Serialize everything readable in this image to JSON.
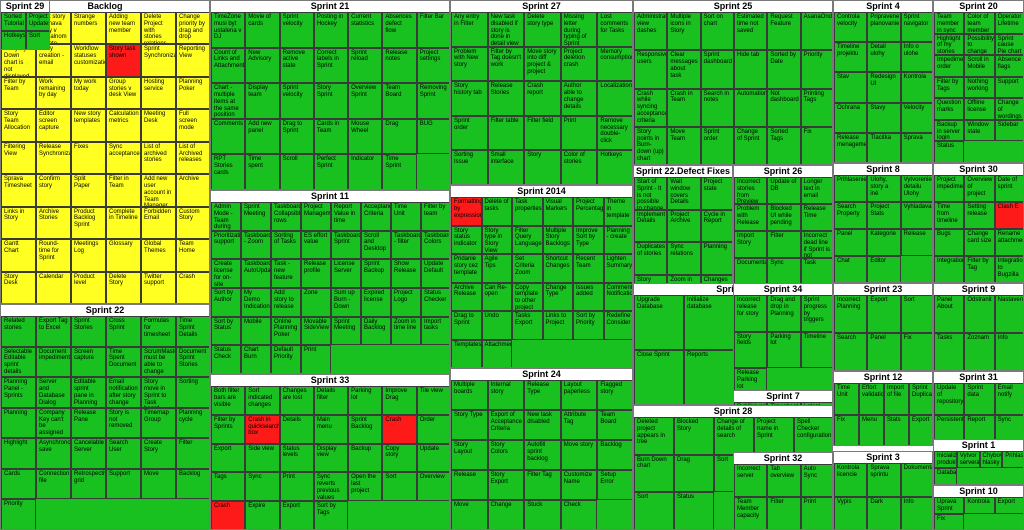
{
  "groups": [
    {
      "title": "Backlog",
      "fill": "yellow",
      "cells": [
        "Import from ESV E.",
        "Split story nechava story v aktualnom sprinte",
        "Strange numbers",
        "Adding new team member",
        "Delete Project with stories relations",
        "Change priority by drag and drop",
        "Story Sym Down chart is not displayed",
        "Story creation - email",
        "Workflow statuses customization",
        "Story task shown",
        "Sprint Synchronization",
        "Reporting View",
        "Filter by Team",
        "Work remaining by day",
        "My work today",
        "Group stories v desk View",
        "Hosting service",
        "Planning Poker",
        "Story Team Allocation",
        "Editor screen capture",
        "New story templates",
        "Calculation metrics",
        "Meeting Desk",
        "Full screen mode",
        "Filtering View",
        "Release Synchronization",
        "Fixes",
        "Sync acceptance",
        "List of archived stories",
        "List of Archived releases",
        "Sprava Timesheet",
        "Confirm story",
        "Split Paper",
        "Filter in Team",
        "Add new user account in Team Manager",
        "Archive",
        "Links in Story",
        "Archive Stories",
        "Product Backlog Sprint",
        "Complete in Timeline",
        "Forbidden Email",
        "Custom Story",
        "Gantt Chart",
        "Round-time for Sprint",
        "Meetings Log",
        "Glossary",
        "Global Themes",
        "Team Home",
        "Story Desk",
        "Calendar",
        "Product level",
        "Delete Story",
        "Twitter support",
        "Crash"
      ]
    },
    {
      "title": "Sprint 21",
      "fill": "green",
      "cells": [
        "TimeZone musi byt ustalena v DJ",
        "Movie of cards",
        "Sprint velocity",
        "Posting in Hockey",
        "Current statistics",
        "Absences defect flow",
        "Filter Bar",
        "Count of Links and Attachments",
        "New Advisory",
        "Remove active state",
        "Correct labels in Sprint",
        "Sprint reload",
        "Release notes",
        "Project settings",
        "Chart - multiple items at the same position",
        "Display team",
        "Sprint velocity",
        "Story Sprint",
        "Overview Sprint",
        "Team Board",
        "Removing Sprint",
        "Comments",
        "Add new panel",
        "Drag to Sprint",
        "Cards in Team",
        "Mouse Wheel",
        "Drag",
        "BUG",
        "RPT Stories cards",
        "Time spent",
        "Scroll",
        "Perfect Sprint",
        "Indicator",
        "Time Sprint"
      ]
    },
    {
      "title": "Sprint 27",
      "fill": "green",
      "cells": [
        "Any entry in Filter",
        "New task disabled if story is done in detail view",
        "Delete story type",
        "Missing letter during typing of Sprint",
        "Lost comments for Tasks",
        "Problem with New story",
        "Filter by Tag doesn't work",
        "Move story into diff project & project",
        "Project deletion crash",
        "Memory consumption",
        "Story history tab",
        "Release Stories",
        "Crash report",
        "Author able to change details",
        "Localization",
        "Sprint order",
        "Filter table",
        "Filter field",
        "Print",
        "Remove necessary double-click",
        "Sorting Issue",
        "Small interface",
        "Story",
        "Color of stories",
        "Hotkeys"
      ]
    },
    {
      "title": "Sprint 25",
      "fill": "green",
      "cells": [
        "Administration view dashes",
        "Multiple icons in Story",
        "Sort on chart",
        "Estimated time not saved",
        "Request Feature",
        "AsanaOnde",
        "Responsive users",
        "Clear messages about task",
        "Sprint dashboard",
        "Hide tab",
        "Sorted by Date",
        "Priority",
        "Crash while syncing acceptance criteria",
        "Crash in Team",
        "Search in notes",
        "Automation",
        "Not dashboard",
        "Printing Tags",
        "Story points in Burn-down (up) chart",
        "Move Team",
        "Sprint order",
        "Change of Sprint",
        "Sorted Tags",
        "Fix"
      ]
    },
    {
      "title": "Sprint 4",
      "fill": "green",
      "cells": [
        "Controla velocity",
        "Pripravene planovanie",
        "Sprint navigator",
        "Timeline projektu",
        "Detail ulohy",
        "Info o ulohe",
        "Stav",
        "Redesign UI",
        "Kontrola",
        "Ochrana",
        "Stavy",
        "Velocity",
        "Release menagement",
        "Tlacitka",
        "Sprava"
      ]
    },
    {
      "title": "Sprint 20",
      "fill": "green",
      "cells": [
        "Team member in sync",
        "Color of team member",
        "Operator Lifetime",
        "Highlight of my stories",
        "Possibility to change the size",
        "Sprint cause Pie chart not",
        "Impediments order",
        "Scroll in Mobile",
        "Absence flags",
        "Filter by Tags",
        "Nothing working",
        "Support",
        "Question marks",
        "Offline license",
        "Change of wordings",
        "Backup in server login",
        "Window state",
        "Sidebar",
        "Status"
      ]
    },
    {
      "title": "Sprint 11",
      "fill": "green",
      "cells": [
        "Admin Mode - Team during the load",
        "Sprint Meeting",
        "Taskboard Collapsible rows",
        "Project Management",
        "Report Value in time",
        "Acceptance Criteria",
        "Time Unit",
        "Filter by team",
        "Prioritization support",
        "Taskboard - Zoom",
        "Sorting of Tasks",
        "ES effort value",
        "Taskboard Sprint",
        "Scroll and Desktop",
        "Taskboard - filter",
        "Taskboard Colors",
        "Create license for on-site users",
        "Taskboard AutoUpdate",
        "Task - new feature",
        "Release profile",
        "License Server",
        "Sprint Backup",
        "Show Release",
        "Update Default",
        "Sort by Author",
        "My Demo Indication",
        "Add story to release",
        "Zone",
        "Sum up Burn - Down",
        "Expired license",
        "Project Logo",
        "Status Checker",
        "Sort by Status",
        "Mobile",
        "Online Planning Poker",
        "Movable SideView",
        "Sprint Meeting",
        "Daily Backlog",
        "Zoom in time line",
        "Import tasks",
        "Status Check",
        "Chart Burn",
        "Default Priority",
        "Print"
      ]
    },
    {
      "title": "Sprint 2014",
      "fill": "green",
      "cells": [
        "Formatting by expression",
        "Delete of tasks",
        "Task properties",
        "Visual Markers",
        "Project Percentage",
        "Theme in template",
        "Story status indicator",
        "Story type in Story View",
        "Filter Query Language",
        "Multiple Story Backlogs",
        "Improve Sort by Type",
        "Planning - create",
        "Pridanie story cez template",
        "Agile Tips",
        "Set Criteria Zoom",
        "Shortcut Changes",
        "Recent Team",
        "Lighten Summary",
        "Archive Release",
        "Can Re-open",
        "Copy template to other project",
        "Change Type",
        "Issues added",
        "Comment Notifications",
        "Drag to Sprint",
        "Undo",
        "Tasks Export",
        "Links to Project",
        "Sort by Priority",
        "Redefine Consider",
        "Templates",
        "Attachments"
      ]
    },
    {
      "title": "Sprint 22.Defect Fixes",
      "fill": "green",
      "cells": [
        "Start of Sprint - It is not possible to change",
        "Wait window covers Details",
        "Project state",
        "Implement Details",
        "Project Archive",
        "Cycle in Report",
        "Duplicates of stories",
        "Sync relations",
        "Planning",
        "Story Archive",
        "Zoom in Report",
        "Changes in Timesheet",
        "Priority in Team",
        "Export",
        "Release Change",
        "Duplicate Ballot",
        "Sprint Issue",
        "Import",
        "Chart"
      ]
    },
    {
      "title": "Sprint 26",
      "fill": "green",
      "cells": [
        "Incorrect stories from Preview",
        "Update of DB",
        "Longer text in email",
        "Problem with Release",
        "Blocked UI while pending",
        "Release Time",
        "Import Story",
        "Filter",
        "Incorrect dead line if Sprint is not",
        "Documentation",
        "Sync",
        "Task"
      ]
    },
    {
      "title": "Sprint 8",
      "fill": "green",
      "cells": [
        "Prihlasenie",
        "Ulohy, story a iné",
        "Vytvorenie detailu Ulohy",
        "Search Property",
        "Project Stats",
        "Vyhladavanie",
        "Panel",
        "Kategorie",
        "Release",
        "Chat",
        "Editor"
      ]
    },
    {
      "title": "Sprint 30",
      "fill": "green",
      "cells": [
        "Project impediments",
        "Overview of project",
        "Date of sprint",
        "Time from timeline",
        "Setting release",
        "Clash E",
        "Bugs",
        "Change card size",
        "Rename attachment",
        "Integration",
        "Filter by Tag",
        "Integration to Bugzilla"
      ]
    },
    {
      "title": "Sprint 22",
      "fill": "green",
      "cells": [
        "Related stories",
        "Export Tag to Excel",
        "Sprint Stories",
        "Cross Sprint",
        "Formulas for timesheet",
        "Time Sprint Details",
        "Selectable Editable sprint details",
        "Document impediments",
        "Screen capture",
        "Time Spent Document",
        "ScrumMaster must be able to change status",
        "Document Sprint Stories",
        "Planning Panel - Sprints",
        "Server and Database Dialog",
        "Editable sprint pane in Planning",
        "Email notification after story change",
        "Story move in Sprint to Task board",
        "Sorting",
        "Planning",
        "Company Key can't be assigned",
        "Release Pane",
        "Story is not removed",
        "Timemap Group",
        "Planning cycle",
        "Highlight",
        "Asynchronous save",
        "Cancelable Server",
        "Search User",
        "Create Story",
        "Filter",
        "Cards",
        "Connection file",
        "Retrospective grid",
        "Support",
        "Move",
        "Backlog",
        "Priority"
      ]
    },
    {
      "title": "Sprint 5",
      "fill": "green",
      "cells": [
        "Upgrade Database",
        "Initialize database",
        "Undo history",
        "Sprint settings",
        "Close Sprint",
        "Reports",
        "Archive"
      ]
    },
    {
      "title": "Sprint 34",
      "fill": "green",
      "cells": [
        "Incorrect release for story",
        "Drag and drop in Planning",
        "Sprint progress by triggers",
        "Story fields",
        "Parking lot",
        "Timeline",
        "Release Parking lot"
      ]
    },
    {
      "title": "Sprint 24",
      "fill": "green",
      "cells": [
        "Multiple boards",
        "Internal story",
        "Release Type",
        "Layout paperless",
        "Flagged story",
        "Story Type",
        "Export of Acceptance Criteria",
        "New task disabled",
        "Attribute Tag",
        "Team Board",
        "Story Layout",
        "Story Colors",
        "Autofill sprint backlog",
        "Move story",
        "Backlog",
        "Release",
        "Story Export",
        "Filter Tag",
        "Customize Name",
        "Setup Error",
        "Move",
        "Change",
        "Stuck",
        "Check"
      ]
    },
    {
      "title": "Sprint 33",
      "fill": "green",
      "cells": [
        "Both filter bars are visible",
        "Sort indicated changes",
        "Changes are lost",
        "Details filter",
        "Parking lot",
        "Improve Drag",
        "Tile view",
        "Filter by Sprints",
        "Crash in quicksearch box",
        "Details",
        "Main menu",
        "Sprint Backlog",
        "Crash",
        "Order",
        "Export",
        "Side view",
        "Status levels",
        "Display view",
        "Backup",
        "Copy story",
        "Update",
        "Tags",
        "Sync",
        "Print",
        "Sync reverts previous values",
        "Open the last project",
        "Sort",
        "Overview",
        "Crash",
        "Expire",
        "Export",
        "Sort by Tags"
      ]
    },
    {
      "title": "Sprint 7",
      "fill": "green",
      "cells": [
        "Publikovanie",
        "Timesheet",
        "Latest",
        "Sharepoint",
        "Sprint overview",
        "Sync"
      ]
    },
    {
      "title": "Sprint 28",
      "fill": "green",
      "cells": [
        "Deleted project appears in tree",
        "Blocked Story",
        "Change of details of search",
        "Project name in Sprint",
        "Spell Checker configuration",
        "Burn Down chart",
        "Drag",
        "Sort",
        "New story template",
        "Detection of retrospective",
        "Sort",
        "Status"
      ]
    },
    {
      "title": "Sprint 32",
      "fill": "green",
      "cells": [
        "Incorrect server",
        "Tab overview",
        "Auto Sync",
        "Team Member capacity",
        "Filter",
        "Print"
      ]
    },
    {
      "title": "Sprint 12",
      "fill": "green",
      "cells": [
        "Time Unit",
        "Effort validation",
        "Import of file",
        "Sprint Duplicates",
        "Fix",
        "Menu",
        "Stats",
        "Export"
      ]
    },
    {
      "title": "Sprint 31",
      "fill": "green",
      "cells": [
        "Update of repository",
        "Sprint data",
        "Email notify",
        "Persistent",
        "Report",
        "Sync"
      ]
    },
    {
      "title": "Sprint 3",
      "fill": "green",
      "cells": [
        "Kontrola licencie",
        "Sprava sprintu",
        "Dokumentacia",
        "Vypis",
        "Dark",
        "Info"
      ]
    },
    {
      "title": "Sprint 23",
      "fill": "green",
      "cells": [
        "Incorrect Planning",
        "Export",
        "Sort",
        "Search",
        "Panel",
        "Fix"
      ]
    },
    {
      "title": "Sprint 9",
      "fill": "green",
      "cells": [
        "Panel About",
        "Odstranit",
        "Nastavenie",
        "Tasks",
        "Zoznam",
        "Info"
      ]
    },
    {
      "title": "Sprint 1",
      "fill": "green",
      "cells": [
        "Inicializacia produktu",
        "Vytvor servera",
        "Chybove hlasky",
        "Prihlasenie",
        "Databaza"
      ]
    },
    {
      "title": "Sprint 6",
      "fill": "green",
      "cells": [
        "Manual",
        "Sprava uloh",
        "Aplikacia",
        "Planovanie",
        "Export"
      ]
    },
    {
      "title": "Sprint 10",
      "fill": "green",
      "cells": [
        "Uprava Sprint",
        "Kontrola",
        "Export",
        "Fix"
      ]
    },
    {
      "title": "Sprint 29",
      "fill": "green",
      "cells": [
        "Sorted Tutorial",
        "Project Updates",
        "Hotkeys",
        "Sort"
      ]
    }
  ]
}
